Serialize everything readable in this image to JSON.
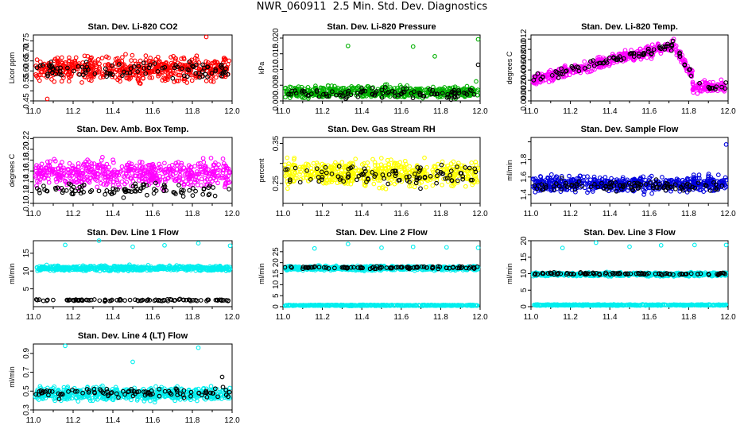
{
  "title": "NWR_060911  2.5 Min. Std. Dev. Diagnostics",
  "chart_data": [
    {
      "type": "scatter",
      "title": "Stan. Dev. Li-820 CO2",
      "ylabel": "Licor ppm",
      "xlim": [
        11.0,
        12.0
      ],
      "ylim": [
        0.45,
        0.78
      ],
      "yticks": [
        0.45,
        0.5,
        0.55,
        0.6,
        0.65,
        0.7,
        0.75
      ],
      "yticklabels": [
        "0.45",
        "",
        "0.55",
        "0.60",
        "0.65",
        "0.70",
        "0.75"
      ],
      "xticks": [
        "11.0",
        "11.2",
        "11.4",
        "11.6",
        "11.8",
        "12.0"
      ],
      "series": [
        {
          "color": "#ff0000",
          "n": 560,
          "base": 0.61,
          "spread": 0.085,
          "outliers": [
            [
              11.87,
              0.77
            ],
            [
              11.07,
              0.46
            ]
          ]
        },
        {
          "color": "#000000",
          "n": 95,
          "base": 0.6,
          "spread": 0.06,
          "outliers": []
        }
      ]
    },
    {
      "type": "scatter",
      "title": "Stan. Dev. Li-820 Pressure",
      "ylabel": "kPa",
      "xlim": [
        11.0,
        12.0
      ],
      "ylim": [
        0,
        0.021
      ],
      "yticks": [
        0,
        0.005,
        0.01,
        0.015,
        0.02
      ],
      "yticklabels": [
        "0.000",
        "0.005",
        "0.010",
        "0.015",
        "0.020"
      ],
      "xticks": [
        "11.0",
        "11.2",
        "11.4",
        "11.6",
        "11.8",
        "12.0"
      ],
      "series": [
        {
          "color": "#00b000",
          "n": 520,
          "base": 0.0028,
          "spread": 0.0028,
          "outliers": [
            [
              11.33,
              0.0175
            ],
            [
              11.66,
              0.0173
            ],
            [
              11.77,
              0.0142
            ],
            [
              11.99,
              0.0196
            ],
            [
              11.98,
              0.0062
            ]
          ]
        },
        {
          "color": "#000000",
          "n": 95,
          "base": 0.0024,
          "spread": 0.0026,
          "outliers": [
            [
              11.99,
              0.0115
            ]
          ]
        }
      ]
    },
    {
      "type": "scatter",
      "title": "Stan. Dev. Li-820 Temp.",
      "ylabel": "degrees C",
      "xlim": [
        11.0,
        12.0
      ],
      "ylim": [
        0,
        0.0128
      ],
      "yticks": [
        0,
        0.002,
        0.004,
        0.006,
        0.008,
        0.01,
        0.012
      ],
      "yticklabels": [
        "0.000",
        "0.002",
        "0.004",
        "0.006",
        "0.008",
        "0.010",
        "0.012"
      ],
      "xticks": [
        "11.0",
        "11.2",
        "11.4",
        "11.6",
        "11.8",
        "12.0"
      ],
      "series": [
        {
          "color": "#ff00ff",
          "n": 520,
          "trend": "temp",
          "spread": 0.0016,
          "outliers": []
        },
        {
          "color": "#000000",
          "n": 95,
          "trend": "temp",
          "spread": 0.0012,
          "outliers": []
        }
      ]
    },
    {
      "type": "scatter",
      "title": "Stan. Dev. Amb. Box Temp.",
      "ylabel": "degrees C",
      "xlim": [
        11.0,
        12.0
      ],
      "ylim": [
        0.1,
        0.222
      ],
      "yticks": [
        0.1,
        0.12,
        0.14,
        0.16,
        0.18,
        0.2,
        0.22
      ],
      "yticklabels": [
        "0.10",
        "0.12",
        "0.14",
        "0.16",
        "0.18",
        "0.20",
        "0.22"
      ],
      "xticks": [
        "11.0",
        "11.2",
        "11.4",
        "11.6",
        "11.8",
        "12.0"
      ],
      "series": [
        {
          "color": "#ff00ff",
          "n": 560,
          "base": 0.155,
          "spread": 0.035,
          "outliers": []
        },
        {
          "color": "#000000",
          "n": 95,
          "base": 0.125,
          "spread": 0.018,
          "outliers": []
        }
      ]
    },
    {
      "type": "scatter",
      "title": "Stan. Dev. Gas Stream RH",
      "ylabel": "percent",
      "xlim": [
        11.0,
        12.0
      ],
      "ylim": [
        0.2,
        0.365
      ],
      "yticks": [
        0.25,
        0.3,
        0.35
      ],
      "yticklabels": [
        "0.25",
        "",
        "0.35"
      ],
      "xticks": [
        "11.0",
        "11.2",
        "11.4",
        "11.6",
        "11.8",
        "12.0"
      ],
      "series": [
        {
          "color": "#ffff00",
          "n": 560,
          "base": 0.275,
          "spread": 0.045,
          "outliers": []
        },
        {
          "color": "#000000",
          "n": 95,
          "base": 0.27,
          "spread": 0.035,
          "outliers": []
        }
      ]
    },
    {
      "type": "scatter",
      "title": "Stan. Dev. Sample Flow",
      "ylabel": "ml/min",
      "xlim": [
        11.0,
        12.0
      ],
      "ylim": [
        1.3,
        2.05
      ],
      "yticks": [
        1.4,
        1.6,
        1.8,
        2.0
      ],
      "yticklabels": [
        "1.4",
        "1.6",
        "1.8",
        ""
      ],
      "xticks": [
        "11.0",
        "11.2",
        "11.4",
        "11.6",
        "11.8",
        "12.0"
      ],
      "series": [
        {
          "color": "#0000dd",
          "n": 560,
          "base": 1.52,
          "spread": 0.13,
          "outliers": [
            [
              11.99,
              1.97
            ]
          ]
        },
        {
          "color": "#000000",
          "n": 95,
          "base": 1.5,
          "spread": 0.09,
          "outliers": []
        }
      ]
    },
    {
      "type": "scatter",
      "title": "Stan. Dev. Line 1 Flow",
      "ylabel": "ml/min",
      "xlim": [
        11.0,
        12.0
      ],
      "ylim": [
        0,
        18.5
      ],
      "yticks": [
        5,
        10,
        15
      ],
      "yticklabels": [
        "5",
        "10",
        "15"
      ],
      "xticks": [
        "11.0",
        "11.2",
        "11.4",
        "11.6",
        "11.8",
        "12.0"
      ],
      "series": [
        {
          "color": "#00eeee",
          "n": 560,
          "base": 10.8,
          "spread": 1.0,
          "outliers": [
            [
              11.16,
              17.3
            ],
            [
              11.33,
              18.5
            ],
            [
              11.5,
              16.8
            ],
            [
              11.66,
              17.2
            ],
            [
              11.83,
              17.8
            ],
            [
              11.99,
              17.1
            ]
          ]
        },
        {
          "color": "#000000",
          "n": 95,
          "base": 1.8,
          "spread": 0.4,
          "outliers": []
        }
      ]
    },
    {
      "type": "scatter",
      "title": "Stan. Dev. Line 2 Flow",
      "ylabel": "ml/min",
      "xlim": [
        11.0,
        12.0
      ],
      "ylim": [
        0,
        30
      ],
      "yticks": [
        0,
        5,
        10,
        15,
        20,
        25
      ],
      "yticklabels": [
        "0",
        "5",
        "10",
        "15",
        "20",
        "25"
      ],
      "xticks": [
        "11.0",
        "11.2",
        "11.4",
        "11.6",
        "11.8",
        "12.0"
      ],
      "series": [
        {
          "color": "#00eeee",
          "n": 560,
          "base": 17.5,
          "spread": 1.4,
          "outliers": [
            [
              11.16,
              26.5
            ],
            [
              11.33,
              28.5
            ],
            [
              11.5,
              26.8
            ],
            [
              11.66,
              27.2
            ],
            [
              11.83,
              27.0
            ],
            [
              11.99,
              26.8
            ]
          ]
        },
        {
          "color": "#00eeee",
          "n": 420,
          "base": 0.6,
          "spread": 0.3,
          "outliers": []
        },
        {
          "color": "#000000",
          "n": 95,
          "base": 17.8,
          "spread": 0.8,
          "outliers": []
        }
      ]
    },
    {
      "type": "scatter",
      "title": "Stan. Dev. Line 3 Flow",
      "ylabel": "ml/min",
      "xlim": [
        11.0,
        12.0
      ],
      "ylim": [
        0,
        20
      ],
      "yticks": [
        0,
        5,
        10,
        15,
        20
      ],
      "yticklabels": [
        "0",
        "5",
        "10",
        "15",
        "20"
      ],
      "xticks": [
        "11.0",
        "11.2",
        "11.4",
        "11.6",
        "11.8",
        "12.0"
      ],
      "series": [
        {
          "color": "#00eeee",
          "n": 560,
          "base": 9.8,
          "spread": 0.8,
          "outliers": [
            [
              11.16,
              17.8
            ],
            [
              11.33,
              19.4
            ],
            [
              11.5,
              18.2
            ],
            [
              11.66,
              18.6
            ],
            [
              11.83,
              18.7
            ],
            [
              11.99,
              18.7
            ]
          ]
        },
        {
          "color": "#00eeee",
          "n": 420,
          "base": 0.5,
          "spread": 0.25,
          "outliers": []
        },
        {
          "color": "#000000",
          "n": 95,
          "base": 10.0,
          "spread": 0.5,
          "outliers": []
        }
      ]
    },
    {
      "type": "scatter",
      "title": "Stan. Dev. Line 4 (LT) Flow",
      "ylabel": "ml/min",
      "xlim": [
        11.0,
        12.0
      ],
      "ylim": [
        0.3,
        1.0
      ],
      "yticks": [
        0.3,
        0.5,
        0.7,
        0.9
      ],
      "yticklabels": [
        "0.3",
        "0.5",
        "0.7",
        "0.9"
      ],
      "xticks": [
        "11.0",
        "11.2",
        "11.4",
        "11.6",
        "11.8",
        "12.0"
      ],
      "series": [
        {
          "color": "#00eeee",
          "n": 560,
          "base": 0.47,
          "spread": 0.1,
          "outliers": [
            [
              11.16,
              0.98
            ],
            [
              11.5,
              0.81
            ],
            [
              11.83,
              0.96
            ]
          ]
        },
        {
          "color": "#000000",
          "n": 95,
          "base": 0.48,
          "spread": 0.08,
          "outliers": [
            [
              11.95,
              0.65
            ]
          ]
        }
      ]
    }
  ]
}
